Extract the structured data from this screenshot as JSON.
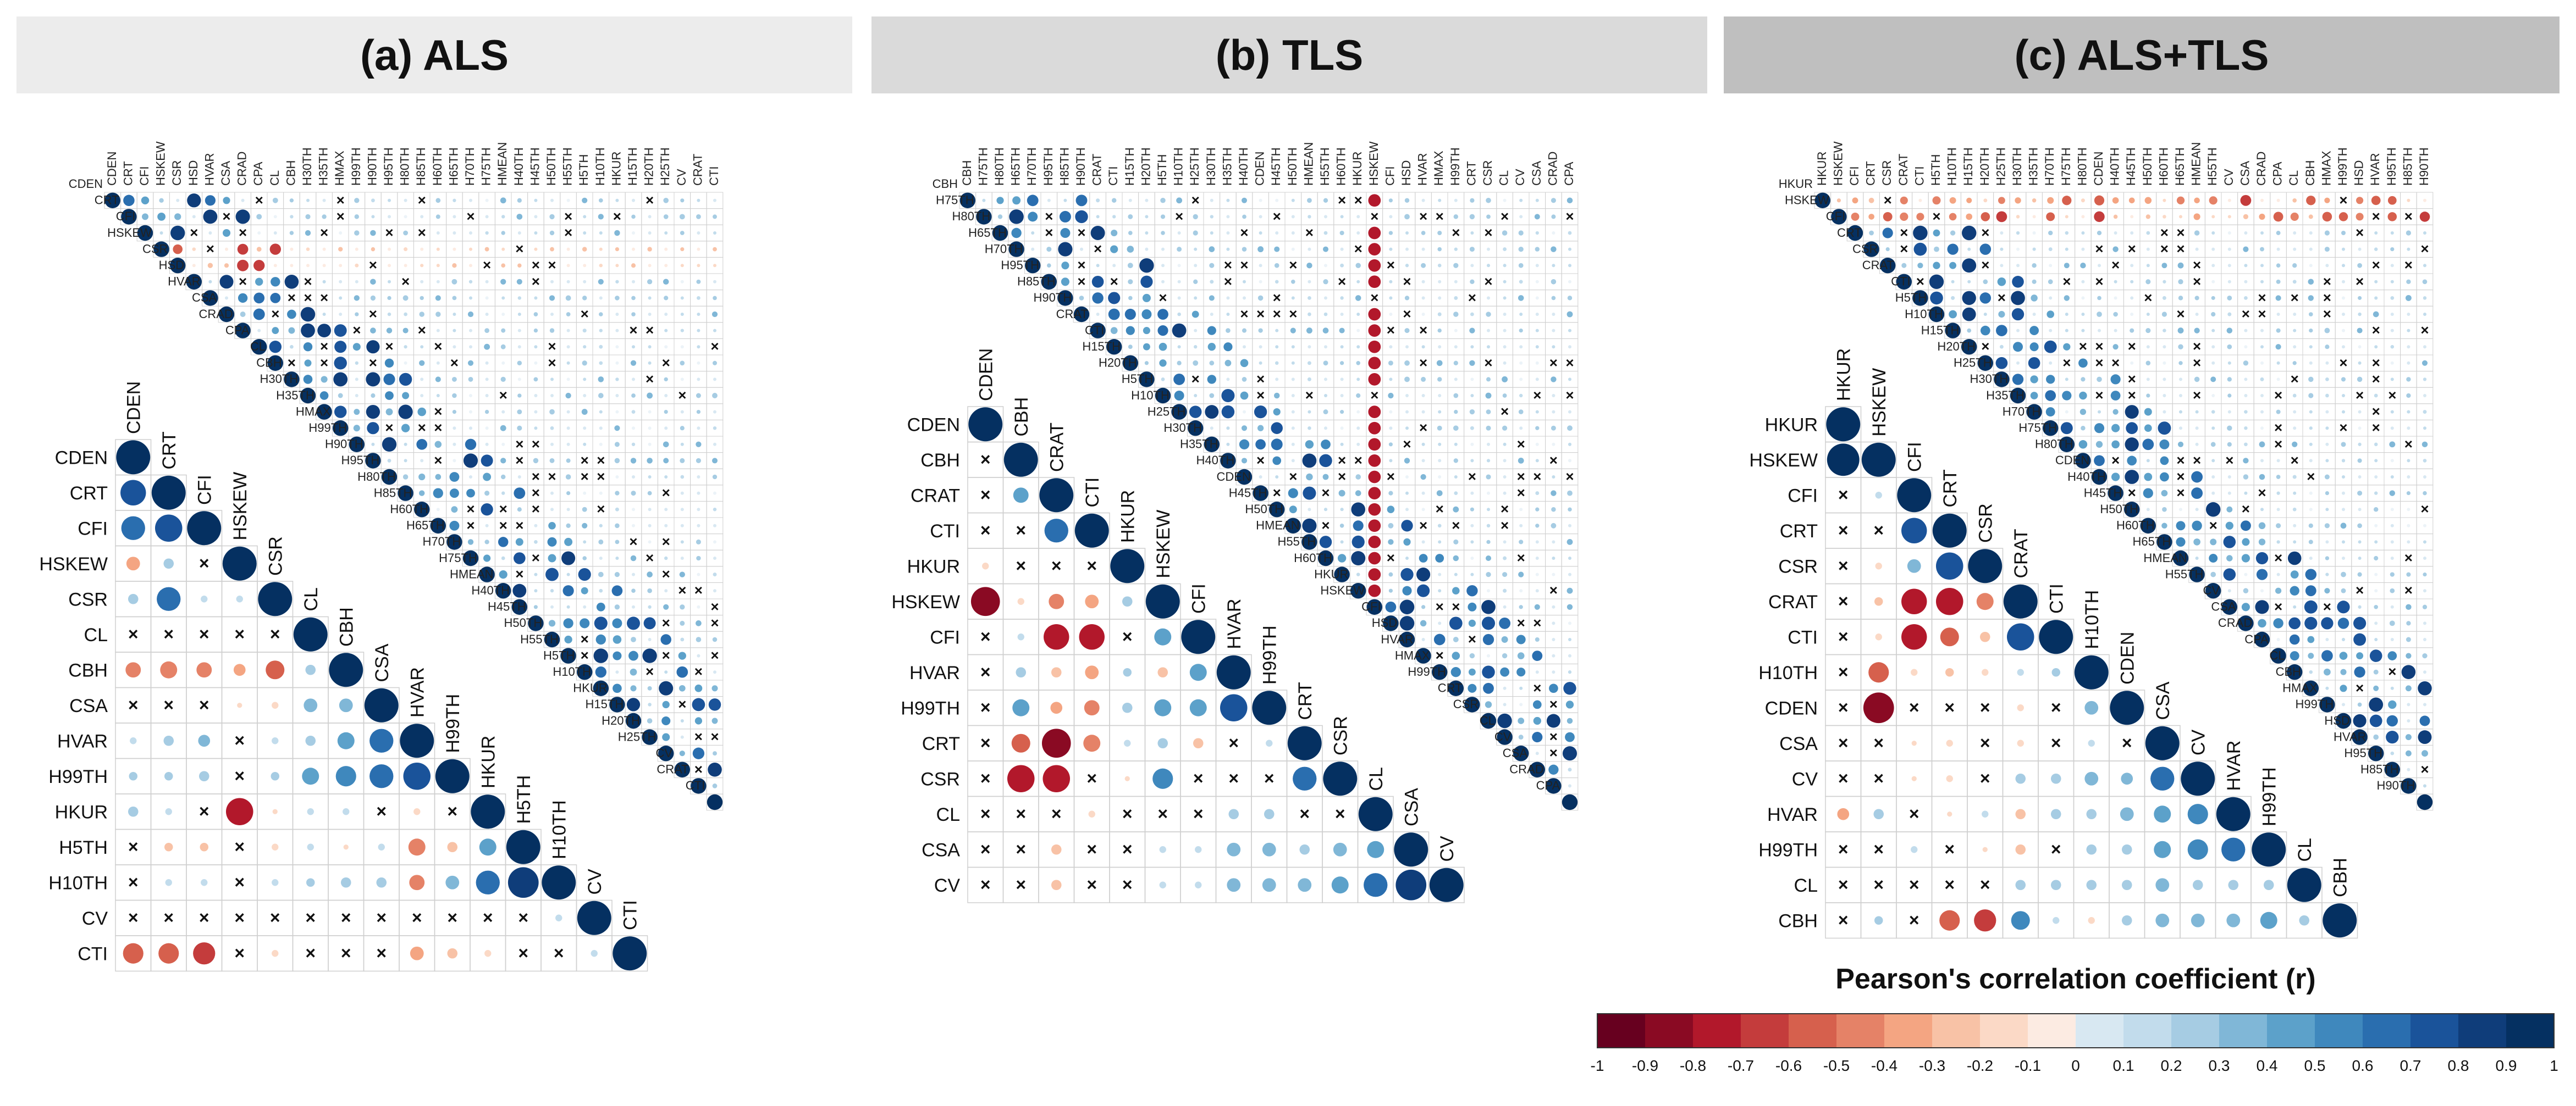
{
  "panels": [
    {
      "title": "(a) ALS",
      "chart_data": {
        "type": "heatmap",
        "small_vars": [
          "CDEN",
          "CRT",
          "CFI",
          "HSKEW",
          "CSR",
          "HSD",
          "HVAR",
          "CSA",
          "CRAD",
          "CPA",
          "CL",
          "CBH",
          "H30TH",
          "H35TH",
          "HMAX",
          "H99TH",
          "H90TH",
          "H95TH",
          "H80TH",
          "H85TH",
          "H60TH",
          "H65TH",
          "H70TH",
          "H75TH",
          "HMEAN",
          "H40TH",
          "H45TH",
          "H50TH",
          "H55TH",
          "H5TH",
          "H10TH",
          "HKUR",
          "H15TH",
          "H20TH",
          "H25TH",
          "CV",
          "CRAT",
          "CTI"
        ],
        "large_vars": [
          "CDEN",
          "CRT",
          "CFI",
          "HSKEW",
          "CSR",
          "CL",
          "CBH",
          "CSA",
          "HVAR",
          "H99TH",
          "HKUR",
          "H5TH",
          "H10TH",
          "CV",
          "CTI"
        ],
        "large_rows": [
          [
            1
          ],
          [
            0.75,
            1
          ],
          [
            0.7,
            0.8,
            1
          ],
          [
            -0.4,
            0.3,
            "x",
            1
          ],
          [
            0.3,
            0.7,
            0.2,
            0.2,
            1
          ],
          [
            "x",
            "x",
            "x",
            "x",
            "x",
            1
          ],
          [
            -0.45,
            -0.5,
            -0.45,
            -0.35,
            -0.55,
            0.3,
            1
          ],
          [
            "x",
            "x",
            "x",
            -0.15,
            -0.2,
            0.4,
            0.4,
            1
          ],
          [
            0.2,
            0.3,
            0.35,
            "x",
            0.2,
            0.3,
            0.5,
            0.7,
            1
          ],
          [
            0.25,
            0.25,
            0.3,
            "x",
            0.25,
            0.5,
            0.6,
            0.7,
            0.8,
            1
          ],
          [
            0.3,
            0.2,
            "x",
            -0.8,
            -0.15,
            0.2,
            0.2,
            "x",
            -0.2,
            "x",
            1
          ],
          [
            "x",
            -0.25,
            -0.25,
            "x",
            -0.2,
            0.2,
            -0.15,
            0.2,
            -0.5,
            -0.3,
            0.5,
            1
          ],
          [
            "x",
            0.2,
            0.2,
            "x",
            0.2,
            0.25,
            0.3,
            0.3,
            -0.45,
            0.4,
            0.7,
            0.9,
            1
          ],
          [
            "x",
            "x",
            "x",
            "x",
            "x",
            "x",
            "x",
            "x",
            "x",
            "x",
            "x",
            "x",
            0.2,
            1
          ],
          [
            -0.6,
            -0.6,
            -0.65,
            "x",
            -0.2,
            "x",
            "x",
            "x",
            -0.4,
            -0.3,
            -0.2,
            "x",
            "x",
            0.2,
            1
          ]
        ]
      }
    },
    {
      "title": "(b) TLS",
      "chart_data": {
        "type": "heatmap",
        "small_vars": [
          "CBH",
          "H75TH",
          "H80TH",
          "H65TH",
          "H70TH",
          "H95TH",
          "H85TH",
          "H90TH",
          "CRAT",
          "CTI",
          "H15TH",
          "H20TH",
          "H5TH",
          "H10TH",
          "H25TH",
          "H30TH",
          "H35TH",
          "H40TH",
          "CDEN",
          "H45TH",
          "H50TH",
          "HMEAN",
          "H55TH",
          "H60TH",
          "HKUR",
          "HSKEW",
          "CFI",
          "HSD",
          "HVAR",
          "HMAX",
          "H99TH",
          "CRT",
          "CSR",
          "CL",
          "CV",
          "CSA",
          "CRAD",
          "CPA"
        ],
        "large_vars": [
          "CDEN",
          "CBH",
          "CRAT",
          "CTI",
          "HKUR",
          "HSKEW",
          "CFI",
          "HVAR",
          "H99TH",
          "CRT",
          "CSR",
          "CL",
          "CSA",
          "CV"
        ],
        "large_rows": [
          [
            1
          ],
          [
            "x",
            1
          ],
          [
            "x",
            0.45,
            1
          ],
          [
            "x",
            "x",
            0.7,
            1
          ],
          [
            -0.2,
            "x",
            "x",
            "x",
            1
          ],
          [
            -0.85,
            -0.2,
            -0.45,
            -0.4,
            0.3,
            1
          ],
          [
            "x",
            0.2,
            -0.75,
            -0.75,
            "x",
            0.5,
            1
          ],
          [
            "x",
            0.3,
            -0.3,
            -0.4,
            0.25,
            -0.3,
            0.5,
            1
          ],
          [
            "x",
            0.5,
            -0.35,
            -0.45,
            0.3,
            0.5,
            0.5,
            0.8,
            1
          ],
          [
            "x",
            -0.55,
            -0.85,
            -0.5,
            0.2,
            0.3,
            -0.3,
            "x",
            0.2,
            1
          ],
          [
            "x",
            -0.8,
            -0.8,
            "x",
            -0.15,
            0.6,
            "x",
            "x",
            "x",
            0.7,
            1
          ],
          [
            "x",
            "x",
            "x",
            -0.2,
            "x",
            "x",
            "x",
            0.3,
            0.3,
            "x",
            "x",
            1
          ],
          [
            "x",
            "x",
            -0.3,
            "x",
            "x",
            0.2,
            0.2,
            0.4,
            0.4,
            0.3,
            0.4,
            0.5,
            1
          ],
          [
            "x",
            "x",
            -0.3,
            "x",
            "x",
            0.2,
            0.2,
            0.4,
            0.4,
            0.4,
            0.5,
            0.7,
            0.9,
            1
          ]
        ]
      }
    },
    {
      "title": "(c) ALS+TLS",
      "chart_data": {
        "type": "heatmap",
        "small_vars": [
          "HKUR",
          "HSKEW",
          "CFI",
          "CRT",
          "CSR",
          "CRAT",
          "CTI",
          "H5TH",
          "H10TH",
          "H15TH",
          "H20TH",
          "H25TH",
          "H30TH",
          "H35TH",
          "H70TH",
          "H75TH",
          "H80TH",
          "CDEN",
          "H40TH",
          "H45TH",
          "H50TH",
          "H60TH",
          "H65TH",
          "HMEAN",
          "H55TH",
          "CV",
          "CSA",
          "CRAD",
          "CPA",
          "CL",
          "CBH",
          "HMAX",
          "H99TH",
          "HSD",
          "HVAR",
          "H95TH",
          "H85TH",
          "H90TH"
        ],
        "large_vars": [
          "HKUR",
          "HSKEW",
          "CFI",
          "CRT",
          "CSR",
          "CRAT",
          "CTI",
          "H10TH",
          "CDEN",
          "CSA",
          "CV",
          "HVAR",
          "H99TH",
          "CL",
          "CBH"
        ],
        "large_rows": [
          [
            1
          ],
          [
            0.95,
            1
          ],
          [
            "x",
            0.2,
            1
          ],
          [
            "x",
            "x",
            0.75,
            1
          ],
          [
            "x",
            -0.2,
            0.4,
            0.8,
            1
          ],
          [
            "x",
            -0.25,
            -0.75,
            -0.8,
            -0.5,
            1
          ],
          [
            "x",
            -0.2,
            -0.75,
            -0.55,
            -0.3,
            0.8,
            1
          ],
          [
            "x",
            -0.6,
            -0.2,
            -0.25,
            -0.2,
            0.2,
            0.25,
            1
          ],
          [
            "x",
            -0.9,
            "x",
            "x",
            "x",
            -0.2,
            "x",
            0.4,
            1
          ],
          [
            "x",
            "x",
            -0.15,
            -0.2,
            "x",
            -0.2,
            "x",
            0.2,
            "x",
            1
          ],
          [
            "x",
            "x",
            -0.15,
            -0.2,
            "x",
            0.3,
            0.3,
            0.4,
            0.35,
            0.7,
            1
          ],
          [
            -0.35,
            0.3,
            "x",
            -0.15,
            0.2,
            -0.3,
            0.3,
            0.3,
            0.4,
            0.5,
            0.6,
            1
          ],
          [
            "x",
            "x",
            0.2,
            "x",
            -0.15,
            -0.3,
            "x",
            0.3,
            0.3,
            0.5,
            0.6,
            0.7,
            1
          ],
          [
            "x",
            "x",
            "x",
            "x",
            "x",
            0.3,
            0.3,
            0.3,
            0.3,
            0.4,
            0.3,
            0.3,
            0.3,
            1
          ],
          [
            "x",
            0.25,
            "x",
            -0.6,
            -0.65,
            0.55,
            0.2,
            -0.2,
            0.3,
            0.4,
            0.4,
            0.4,
            0.5,
            0.3,
            1
          ]
        ]
      }
    }
  ],
  "legend": {
    "title": "Pearson's correlation coefficient (r)",
    "ticks": [
      "-1",
      "-0.9",
      "-0.8",
      "-0.7",
      "-0.6",
      "-0.5",
      "-0.4",
      "-0.3",
      "-0.2",
      "-0.1",
      "0",
      "0.1",
      "0.2",
      "0.3",
      "0.4",
      "0.5",
      "0.6",
      "0.7",
      "0.8",
      "0.9",
      "1"
    ],
    "neg_colors": [
      "#67001f",
      "#8a0a23",
      "#b2182b",
      "#c43c3c",
      "#d6604d",
      "#e58267",
      "#f4a582",
      "#f8c2a6",
      "#fbd9c6",
      "#fcebe2"
    ],
    "pos_colors": [
      "#ecf3f8",
      "#d8e8f2",
      "#c2dcec",
      "#a6cce3",
      "#80b7d7",
      "#5ca1ca",
      "#3f88bd",
      "#2a6eaf",
      "#1a539a",
      "#0f3d7a",
      "#053061"
    ]
  }
}
